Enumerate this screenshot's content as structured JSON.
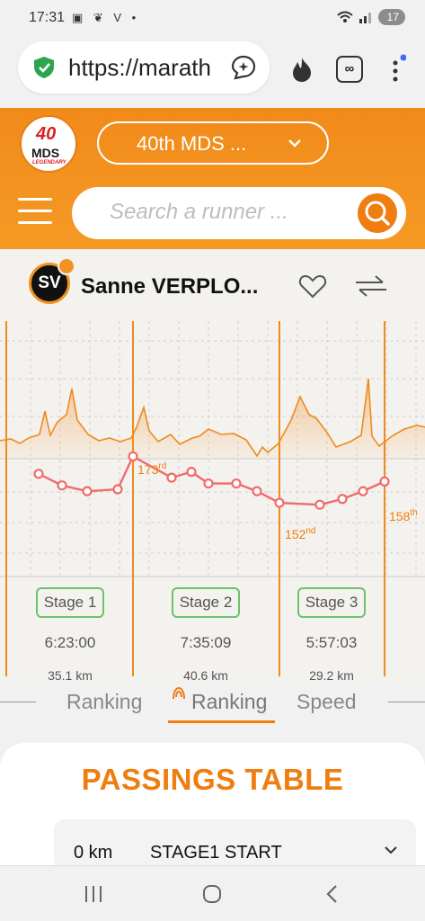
{
  "status": {
    "time": "17:31",
    "left_icons": "▣ ❦ V •",
    "battery": "17"
  },
  "browser": {
    "url": "https://marath"
  },
  "header": {
    "logo_number": "40",
    "logo_text": "MDS",
    "logo_sub": "LEGENDARY",
    "race_select": "40th MDS ...",
    "search_placeholder": "Search a runner ..."
  },
  "runner": {
    "initials": "SV",
    "name": "Sanne VERPLO..."
  },
  "chart_data": {
    "type": "line",
    "series": [
      {
        "values": [
          46,
          40,
          37,
          38,
          55,
          44,
          47,
          41,
          41,
          37,
          31,
          30,
          33,
          37,
          42
        ]
      }
    ],
    "rank_labels": [
      {
        "value": "173",
        "suffix": "rd"
      },
      {
        "value": "152",
        "suffix": "nd"
      },
      {
        "value": "158",
        "suffix": "th"
      }
    ],
    "stages": [
      {
        "label": "Stage 1",
        "time": "6:23:00",
        "distance": "35.1 km"
      },
      {
        "label": "Stage 2",
        "time": "7:35:09",
        "distance": "40.6 km"
      },
      {
        "label": "Stage 3",
        "time": "5:57:03",
        "distance": "29.2 km"
      }
    ],
    "grid": true,
    "colors": {
      "rank": "#f06b6b",
      "elevation": "#ef8a1e",
      "stage_line": "#ef8a1e"
    }
  },
  "tabs": [
    {
      "label": "Ranking"
    },
    {
      "label": "Ranking"
    },
    {
      "label": "Speed"
    }
  ],
  "passings": {
    "title": "PASSINGS TABLE",
    "rows": [
      {
        "km": "0 km",
        "name": "STAGE1 START"
      }
    ]
  },
  "colors": {
    "accent": "#ef7d10",
    "stage_pill": "#6cc26c"
  }
}
